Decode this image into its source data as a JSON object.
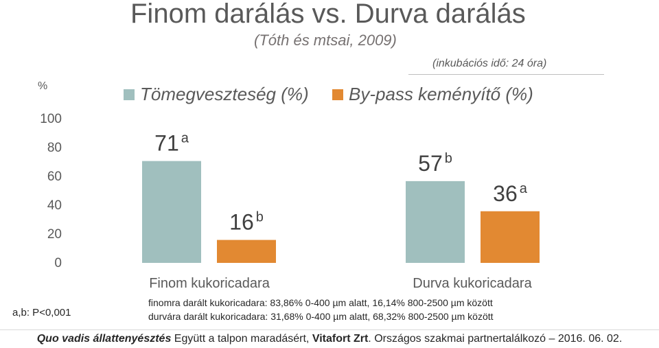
{
  "header": {
    "title": "Finom darálás vs. Durva darálás",
    "subtitle": "(Tóth és mtsai, 2009)",
    "incubation_note": "(inkubációs idő: 24 óra)"
  },
  "chart_data": {
    "type": "bar",
    "categories": [
      "Finom kukoricadara",
      "Durva kukoricadara"
    ],
    "series": [
      {
        "name": "Tömegveszteség (%)",
        "values": [
          71,
          57
        ],
        "labels": [
          "71",
          "57"
        ],
        "superscripts": [
          "a",
          "b"
        ],
        "color": "#a0bfbe"
      },
      {
        "name": "By-pass keményítő (%)",
        "values": [
          16,
          36
        ],
        "labels": [
          "16",
          "36"
        ],
        "superscripts": [
          "b",
          "a"
        ],
        "color": "#e28932"
      }
    ],
    "ylabel": "%",
    "yticks": [
      "0",
      "20",
      "40",
      "60",
      "80",
      "100"
    ],
    "ylim": [
      0,
      100
    ]
  },
  "notes": {
    "fine": "finomra darált kukoricadara: 83,86% 0-400 µm alatt, 16,14% 800-2500 µm között",
    "coarse": "durvára darált kukoricadara: 31,68% 0-400 µm alatt, 68,32% 800-2500 µm között",
    "significance": "a,b: P<0,001"
  },
  "footer": {
    "part1": "Quo vadis állattenyésztés",
    "part2": " Együtt a talpon maradásért, ",
    "part3": "Vitafort Zrt",
    "part4": ". Országos szakmai partnertalálkozó – 2016. 06. 02."
  }
}
